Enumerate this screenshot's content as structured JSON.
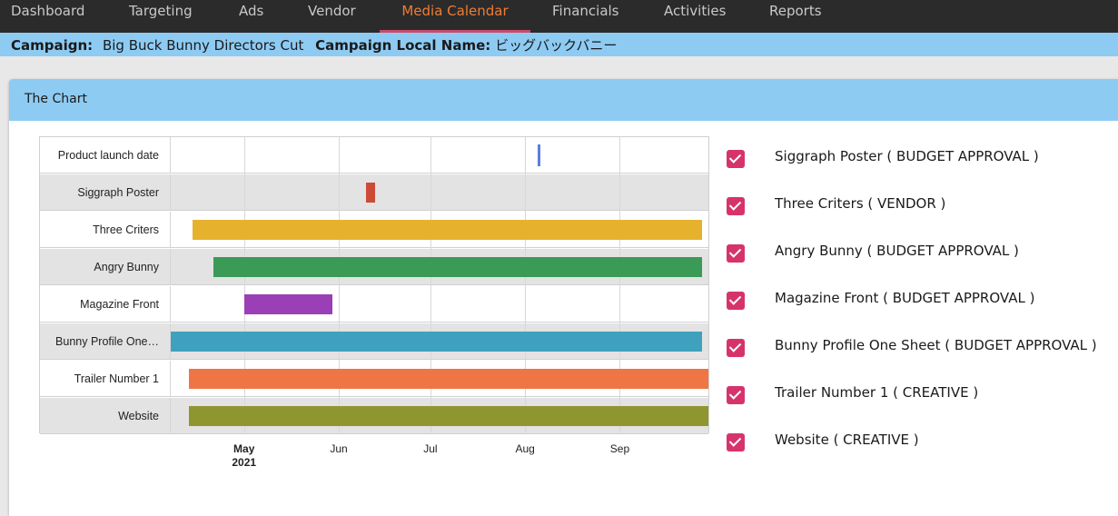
{
  "nav": {
    "items": [
      {
        "label": "Dashboard",
        "active": false
      },
      {
        "label": "Targeting",
        "active": false
      },
      {
        "label": "Ads",
        "active": false
      },
      {
        "label": "Vendor",
        "active": false
      },
      {
        "label": "Media Calendar",
        "active": true
      },
      {
        "label": "Financials",
        "active": false
      },
      {
        "label": "Activities",
        "active": false
      },
      {
        "label": "Reports",
        "active": false
      }
    ]
  },
  "campaign": {
    "campaign_label": "Campaign:",
    "campaign_value": "Big Buck Bunny Directors Cut",
    "local_name_label": "Campaign Local Name:",
    "local_name_value": "ビッグバックバニー"
  },
  "card": {
    "title": "The Chart"
  },
  "chart_data": {
    "type": "timeline",
    "x_axis": {
      "type": "date",
      "range": [
        "2021-04-07",
        "2021-09-30"
      ],
      "ticks": [
        {
          "date": "2021-05-01",
          "label": "May",
          "sublabel": "2021",
          "bold": true
        },
        {
          "date": "2021-06-01",
          "label": "Jun",
          "sublabel": "",
          "bold": false
        },
        {
          "date": "2021-07-01",
          "label": "Jul",
          "sublabel": "",
          "bold": false
        },
        {
          "date": "2021-08-01",
          "label": "Aug",
          "sublabel": "",
          "bold": false
        },
        {
          "date": "2021-09-01",
          "label": "Sep",
          "sublabel": "",
          "bold": false
        }
      ]
    },
    "rows": [
      {
        "label": "Product launch date",
        "start": "2021-08-05",
        "end": "2021-08-05",
        "color": "#5b7fde",
        "marker": "line"
      },
      {
        "label": "Siggraph Poster",
        "start": "2021-06-10",
        "end": "2021-06-13",
        "color": "#cc4b37",
        "marker": "bar"
      },
      {
        "label": "Three Criters",
        "start": "2021-04-14",
        "end": "2021-09-28",
        "color": "#e6b22e",
        "marker": "bar"
      },
      {
        "label": "Angry Bunny",
        "start": "2021-04-21",
        "end": "2021-09-28",
        "color": "#3a9a56",
        "marker": "bar"
      },
      {
        "label": "Magazine Front",
        "start": "2021-05-01",
        "end": "2021-05-30",
        "color": "#9a3fb5",
        "marker": "bar"
      },
      {
        "label": "Bunny Profile One…",
        "start": "2021-04-07",
        "end": "2021-09-28",
        "color": "#3fa1bd",
        "marker": "bar"
      },
      {
        "label": "Trailer Number 1",
        "start": "2021-04-13",
        "end": "2021-09-30",
        "color": "#ef7545",
        "marker": "bar"
      },
      {
        "label": "Website",
        "start": "2021-04-13",
        "end": "2021-09-30",
        "color": "#8f9630",
        "marker": "bar"
      }
    ]
  },
  "legend": {
    "items": [
      {
        "label": "Siggraph Poster ( BUDGET APPROVAL )",
        "checked": true
      },
      {
        "label": "Three Criters ( VENDOR )",
        "checked": true
      },
      {
        "label": "Angry Bunny ( BUDGET APPROVAL )",
        "checked": true
      },
      {
        "label": "Magazine Front ( BUDGET APPROVAL )",
        "checked": true
      },
      {
        "label": "Bunny Profile One Sheet ( BUDGET APPROVAL )",
        "checked": true
      },
      {
        "label": "Trailer Number 1 ( CREATIVE )",
        "checked": true
      },
      {
        "label": "Website ( CREATIVE )",
        "checked": true
      }
    ],
    "checkbox_color": "#d6336c"
  }
}
